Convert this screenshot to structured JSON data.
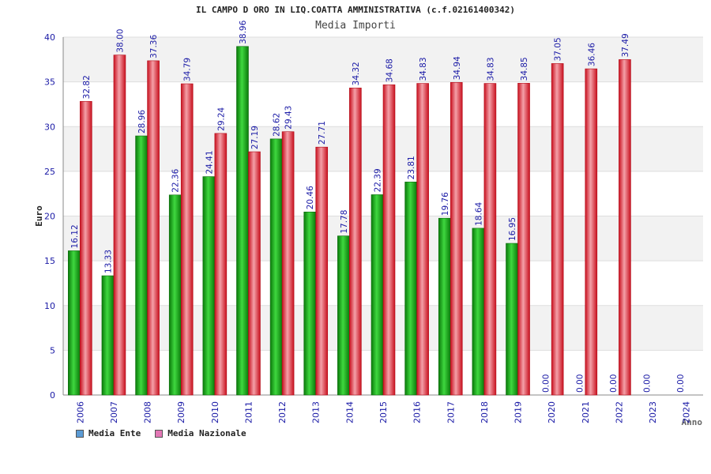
{
  "chart_data": {
    "type": "bar",
    "title": "IL CAMPO D ORO IN LIQ.COATTA AMMINISTRATIVA (c.f.02161400342)",
    "subtitle": "Media Importi",
    "xlabel": "Anno",
    "ylabel": "Euro",
    "ylim": [
      0,
      40
    ],
    "yticks": [
      0,
      5,
      10,
      15,
      20,
      25,
      30,
      35,
      40
    ],
    "categories": [
      "2006",
      "2007",
      "2008",
      "2009",
      "2010",
      "2011",
      "2012",
      "2013",
      "2014",
      "2015",
      "2016",
      "2017",
      "2018",
      "2019",
      "2020",
      "2021",
      "2022",
      "2023",
      "2024"
    ],
    "series": [
      {
        "name": "Media Ente",
        "legend_color": "#5b9bd5",
        "bar_color": "#1fae1f",
        "values": [
          16.12,
          13.33,
          28.96,
          22.36,
          24.41,
          38.96,
          28.62,
          20.46,
          17.78,
          22.39,
          23.81,
          19.76,
          18.64,
          16.95,
          0.0,
          0.0,
          0.0,
          0.0,
          0.0
        ],
        "labels": [
          "16.12",
          "13.33",
          "28.96",
          "22.36",
          "24.41",
          "38.96",
          "28.62",
          "20.46",
          "17.78",
          "22.39",
          "23.81",
          "19.76",
          "18.64",
          "16.95",
          "0.00",
          "0.00",
          "0.00",
          "0.00",
          "0.00"
        ]
      },
      {
        "name": "Media Nazionale",
        "legend_color": "#e377b5",
        "bar_color": "#e8343f",
        "values": [
          32.82,
          38.0,
          37.36,
          34.79,
          29.24,
          27.19,
          29.43,
          27.71,
          34.32,
          34.68,
          34.83,
          34.94,
          34.83,
          34.85,
          37.05,
          36.46,
          37.49,
          null,
          null
        ],
        "labels": [
          "32.82",
          "38.00",
          "37.36",
          "34.79",
          "29.24",
          "27.19",
          "29.43",
          "27.71",
          "34.32",
          "34.68",
          "34.83",
          "34.94",
          "34.83",
          "34.85",
          "37.05",
          "36.46",
          "37.49",
          null,
          null
        ]
      }
    ],
    "grid": true,
    "legend_position": "bottom-left"
  }
}
